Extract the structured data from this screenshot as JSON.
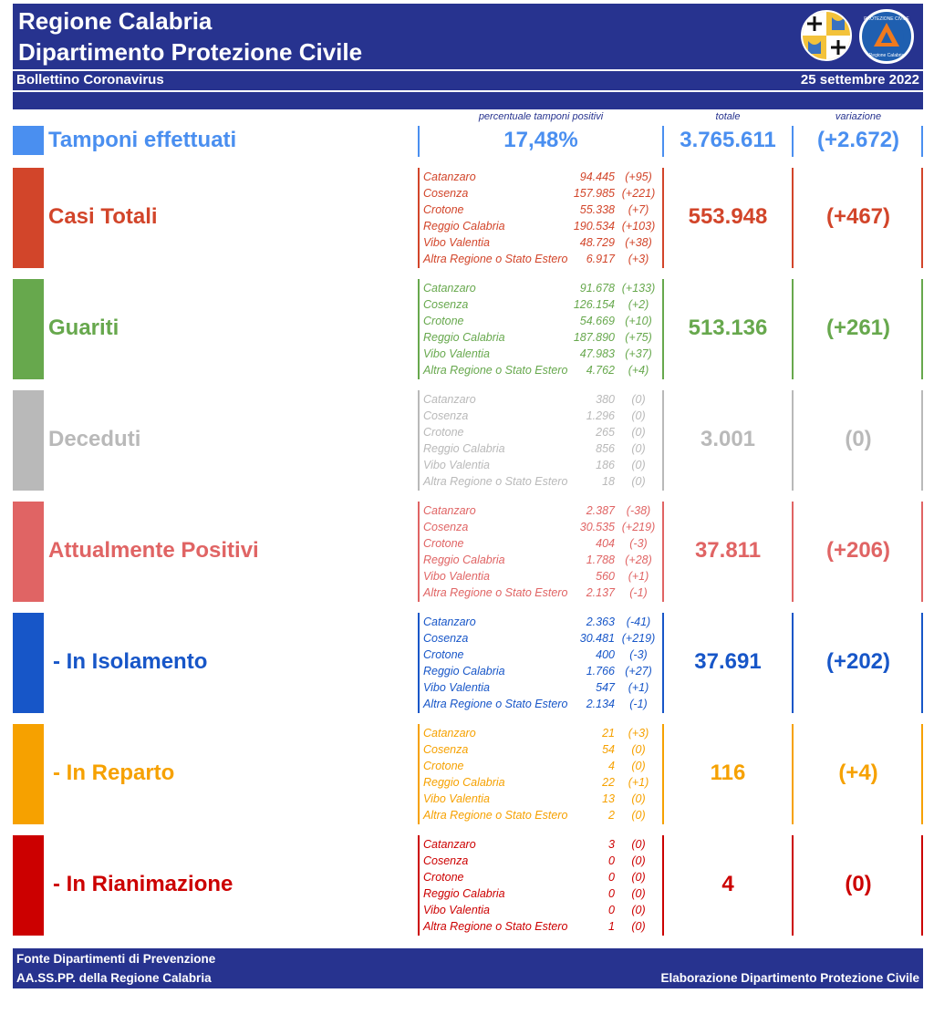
{
  "header": {
    "title_line1": "Regione Calabria",
    "title_line2": "Dipartimento Protezione Civile",
    "bulletin": "Bollettino Coronavirus",
    "date": "25 settembre 2022",
    "logo2_text_top": "PROTEZIONE CIVILE",
    "logo2_text_bottom": "Regione Calabria"
  },
  "columns": {
    "percent": "percentuale tamponi positivi",
    "total": "totale",
    "variation": "variazione"
  },
  "tamponi": {
    "label": "Tamponi effettuati",
    "percent": "17,48%",
    "total": "3.765.611",
    "variation": "(+2.672)",
    "color": "#4a8ff0"
  },
  "sections": [
    {
      "label": "Casi Totali",
      "color": "#d2452a",
      "total": "553.948",
      "variation": "(+467)",
      "rows": [
        {
          "name": "Catanzaro",
          "value": "94.445",
          "delta": "(+95)"
        },
        {
          "name": "Cosenza",
          "value": "157.985",
          "delta": "(+221)"
        },
        {
          "name": "Crotone",
          "value": "55.338",
          "delta": "(+7)"
        },
        {
          "name": "Reggio Calabria",
          "value": "190.534",
          "delta": "(+103)"
        },
        {
          "name": "Vibo Valentia",
          "value": "48.729",
          "delta": "(+38)"
        },
        {
          "name": "Altra Regione o Stato Estero",
          "value": "6.917",
          "delta": "(+3)"
        }
      ]
    },
    {
      "label": "Guariti",
      "color": "#67a84d",
      "total": "513.136",
      "variation": "(+261)",
      "rows": [
        {
          "name": "Catanzaro",
          "value": "91.678",
          "delta": "(+133)"
        },
        {
          "name": "Cosenza",
          "value": "126.154",
          "delta": "(+2)"
        },
        {
          "name": "Crotone",
          "value": "54.669",
          "delta": "(+10)"
        },
        {
          "name": "Reggio Calabria",
          "value": "187.890",
          "delta": "(+75)"
        },
        {
          "name": "Vibo Valentia",
          "value": "47.983",
          "delta": "(+37)"
        },
        {
          "name": "Altra Regione o Stato Estero",
          "value": "4.762",
          "delta": "(+4)"
        }
      ]
    },
    {
      "label": "Deceduti",
      "color": "#b9b9b9",
      "total": "3.001",
      "variation": "(0)",
      "rows": [
        {
          "name": "Catanzaro",
          "value": "380",
          "delta": "(0)"
        },
        {
          "name": "Cosenza",
          "value": "1.296",
          "delta": "(0)"
        },
        {
          "name": "Crotone",
          "value": "265",
          "delta": "(0)"
        },
        {
          "name": "Reggio Calabria",
          "value": "856",
          "delta": "(0)"
        },
        {
          "name": "Vibo Valentia",
          "value": "186",
          "delta": "(0)"
        },
        {
          "name": "Altra Regione o Stato Estero",
          "value": "18",
          "delta": "(0)"
        }
      ]
    },
    {
      "label": "Attualmente Positivi",
      "color": "#e06464",
      "total": "37.811",
      "variation": "(+206)",
      "rows": [
        {
          "name": "Catanzaro",
          "value": "2.387",
          "delta": "(-38)"
        },
        {
          "name": "Cosenza",
          "value": "30.535",
          "delta": "(+219)"
        },
        {
          "name": "Crotone",
          "value": "404",
          "delta": "(-3)"
        },
        {
          "name": "Reggio Calabria",
          "value": "1.788",
          "delta": "(+28)"
        },
        {
          "name": "Vibo Valentia",
          "value": "560",
          "delta": "(+1)"
        },
        {
          "name": "Altra Regione o Stato Estero",
          "value": "2.137",
          "delta": "(-1)"
        }
      ]
    },
    {
      "label": " - In Isolamento",
      "color": "#1756c8",
      "total": "37.691",
      "variation": "(+202)",
      "rows": [
        {
          "name": "Catanzaro",
          "value": "2.363",
          "delta": "(-41)"
        },
        {
          "name": "Cosenza",
          "value": "30.481",
          "delta": "(+219)"
        },
        {
          "name": "Crotone",
          "value": "400",
          "delta": "(-3)"
        },
        {
          "name": "Reggio Calabria",
          "value": "1.766",
          "delta": "(+27)"
        },
        {
          "name": "Vibo Valentia",
          "value": "547",
          "delta": "(+1)"
        },
        {
          "name": "Altra Regione o Stato Estero",
          "value": "2.134",
          "delta": "(-1)"
        }
      ]
    },
    {
      "label": " - In Reparto",
      "color": "#f6a100",
      "total": "116",
      "variation": "(+4)",
      "rows": [
        {
          "name": "Catanzaro",
          "value": "21",
          "delta": "(+3)"
        },
        {
          "name": "Cosenza",
          "value": "54",
          "delta": "(0)"
        },
        {
          "name": "Crotone",
          "value": "4",
          "delta": "(0)"
        },
        {
          "name": "Reggio Calabria",
          "value": "22",
          "delta": "(+1)"
        },
        {
          "name": "Vibo Valentia",
          "value": "13",
          "delta": "(0)"
        },
        {
          "name": "Altra Regione o Stato Estero",
          "value": "2",
          "delta": "(0)"
        }
      ]
    },
    {
      "label": " - In Rianimazione",
      "color": "#cc0000",
      "total": "4",
      "variation": "(0)",
      "rows": [
        {
          "name": "Catanzaro",
          "value": "3",
          "delta": "(0)"
        },
        {
          "name": "Cosenza",
          "value": "0",
          "delta": "(0)"
        },
        {
          "name": "Crotone",
          "value": "0",
          "delta": "(0)"
        },
        {
          "name": "Reggio Calabria",
          "value": "0",
          "delta": "(0)"
        },
        {
          "name": "Vibo Valentia",
          "value": "0",
          "delta": "(0)"
        },
        {
          "name": "Altra Regione o Stato Estero",
          "value": "1",
          "delta": "(0)"
        }
      ]
    }
  ],
  "footer": {
    "line1": "Fonte Dipartimenti di Prevenzione",
    "line2": "AA.SS.PP.  della Regione Calabria",
    "credit": "Elaborazione Dipartimento Protezione Civile"
  }
}
